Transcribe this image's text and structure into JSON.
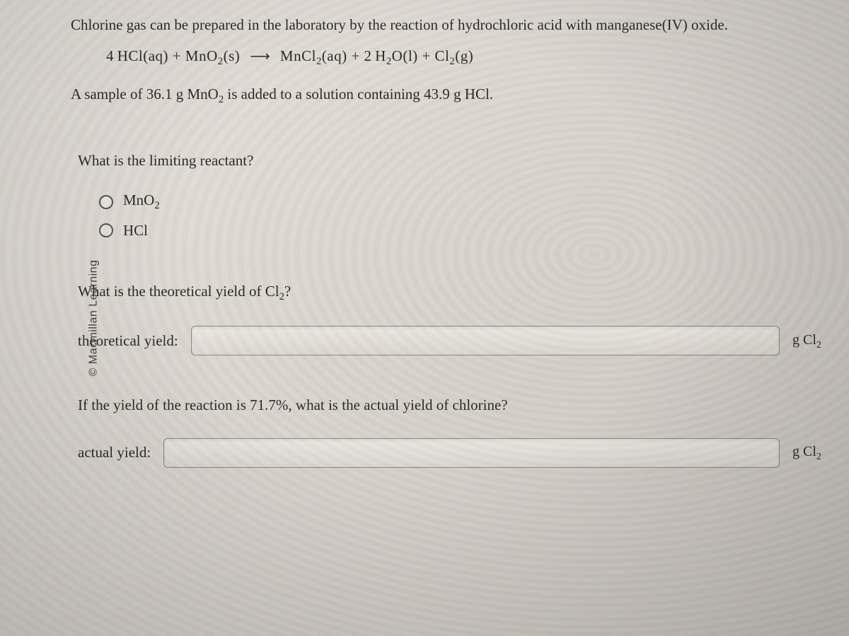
{
  "copyright": "© Macmillan Learning",
  "intro": "Chlorine gas can be prepared in the laboratory by the reaction of hydrochloric acid with manganese(IV) oxide.",
  "equation": {
    "lhs_coeff1": "4",
    "lhs1": "HCl(aq)",
    "plus1": "+",
    "lhs2_base": "MnO",
    "lhs2_sub": "2",
    "lhs2_state": "(s)",
    "arrow": "⟶",
    "rhs1_base": "MnCl",
    "rhs1_sub": "2",
    "rhs1_state": "(aq)",
    "plus2": "+",
    "rhs2_coeff": "2",
    "rhs2_base": "H",
    "rhs2_sub": "2",
    "rhs2_rest": "O(l)",
    "plus3": "+",
    "rhs3_base": "Cl",
    "rhs3_sub": "2",
    "rhs3_state": "(g)"
  },
  "sample_line_prefix": "A sample of 36.1 g MnO",
  "sample_line_sub": "2",
  "sample_line_suffix": " is added to a solution containing 43.9 g HCl.",
  "q1": {
    "text": "What is the limiting reactant?",
    "opt1_base": "MnO",
    "opt1_sub": "2",
    "opt2": "HCl"
  },
  "q2": {
    "text_prefix": "What is the theoretical yield of Cl",
    "text_sub": "2",
    "text_suffix": "?",
    "label": "theoretical yield:",
    "unit_prefix": "g Cl",
    "unit_sub": "2",
    "value": ""
  },
  "q3": {
    "text": "If the yield of the reaction is 71.7%, what is the actual yield of chlorine?",
    "label": "actual yield:",
    "unit_prefix": "g Cl",
    "unit_sub": "2",
    "value": ""
  },
  "colors": {
    "text": "#2a2a2a",
    "border": "#888888",
    "radio_border": "#555555",
    "bg_from": "#e8e4dc",
    "bg_to": "#c8c4bc"
  }
}
